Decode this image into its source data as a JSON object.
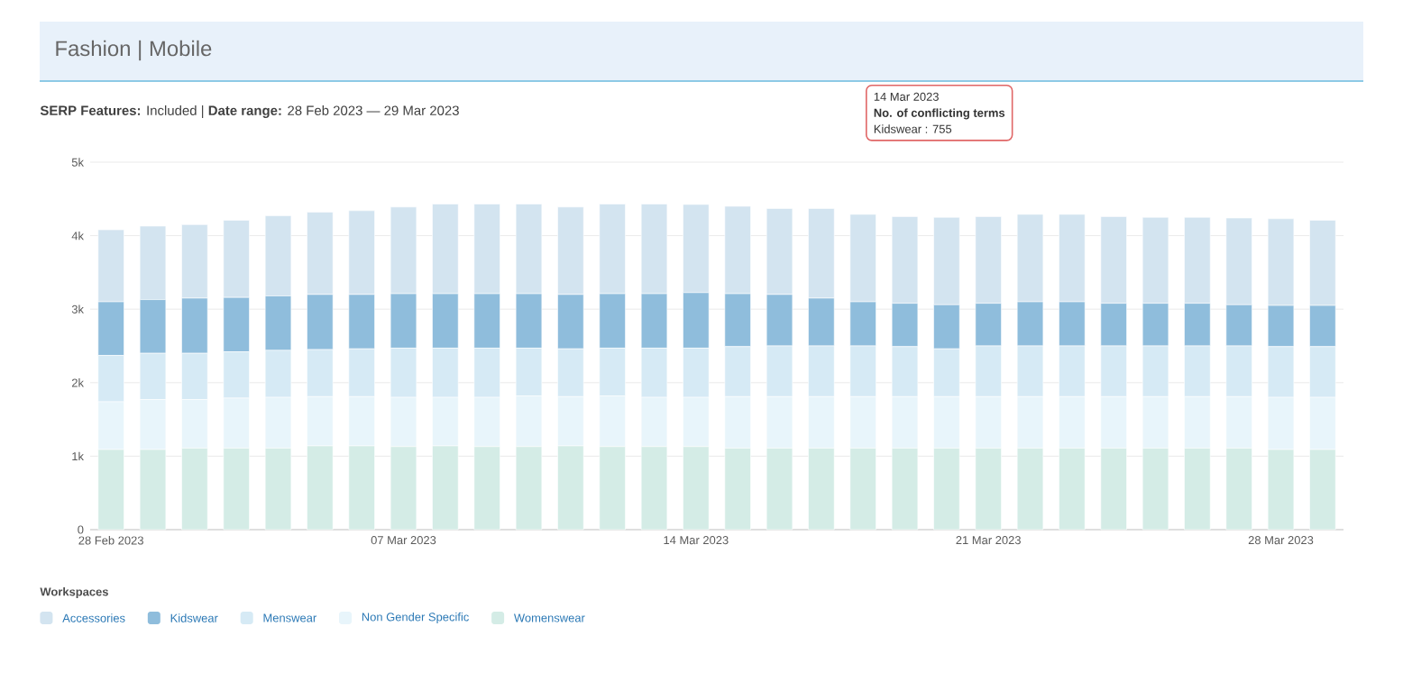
{
  "chart_data": {
    "type": "bar",
    "stacked": true,
    "title": "Fashion | Mobile",
    "subtitle": "**SERP Features:** Included  |  **Date range:** 28 Feb 2023 — 29 Mar 2023",
    "legend_title": "Workspaces",
    "legend": "bottom",
    "grid": "y",
    "categories": [
      "28 Feb 2023",
      null,
      null,
      null,
      null,
      null,
      null,
      "07 Mar 2023",
      null,
      null,
      null,
      null,
      null,
      null,
      "14 Mar 2023",
      null,
      null,
      null,
      null,
      null,
      null,
      "21 Mar 2023",
      null,
      null,
      null,
      null,
      null,
      null,
      "28 Mar 2023",
      null
    ],
    "ylim": [
      0,
      5000
    ],
    "yticks": [
      0,
      {
        "value": 1000,
        "label": "1k"
      },
      {
        "value": 2000,
        "label": "2k"
      },
      {
        "value": 3000,
        "label": "3k"
      },
      {
        "value": 4000,
        "label": "4k"
      },
      {
        "value": 5000,
        "label": "5k"
      }
    ],
    "series": [
      {
        "name": "Womenswear",
        "color": "#d4ece6",
        "values": [
          1090,
          1090,
          1110,
          1110,
          1110,
          1140,
          1140,
          1130,
          1140,
          1130,
          1130,
          1140,
          1130,
          1130,
          1130,
          1110,
          1110,
          1110,
          1110,
          1110,
          1110,
          1110,
          1110,
          1110,
          1110,
          1110,
          1110,
          1110,
          1090,
          1090
        ]
      },
      {
        "name": "Non Gender Specific",
        "color": "#e8f5fb",
        "values": [
          650,
          680,
          660,
          680,
          690,
          670,
          670,
          670,
          660,
          670,
          690,
          670,
          690,
          670,
          670,
          700,
          700,
          700,
          700,
          700,
          700,
          700,
          700,
          700,
          700,
          700,
          700,
          700,
          710,
          710
        ]
      },
      {
        "name": "Menswear",
        "color": "#d6eaf5",
        "values": [
          630,
          630,
          630,
          630,
          640,
          640,
          650,
          670,
          670,
          670,
          650,
          650,
          650,
          670,
          670,
          680,
          690,
          690,
          690,
          680,
          650,
          690,
          690,
          690,
          690,
          690,
          690,
          690,
          690,
          690
        ]
      },
      {
        "name": "Kidswear",
        "color": "#8fbddc",
        "values": [
          730,
          730,
          750,
          740,
          740,
          750,
          740,
          740,
          740,
          740,
          740,
          740,
          740,
          740,
          755,
          720,
          700,
          650,
          600,
          590,
          600,
          580,
          600,
          600,
          580,
          580,
          580,
          560,
          560,
          560
        ]
      },
      {
        "name": "Accessories",
        "color": "#d3e4f0",
        "values": [
          980,
          1000,
          1000,
          1050,
          1090,
          1120,
          1140,
          1180,
          1220,
          1220,
          1220,
          1190,
          1220,
          1220,
          1200,
          1190,
          1170,
          1220,
          1190,
          1180,
          1190,
          1180,
          1190,
          1190,
          1180,
          1170,
          1170,
          1180,
          1180,
          1160
        ]
      }
    ],
    "annotations": [
      "14 Mar 2023",
      "No. of conflicting terms",
      "Kidswear : 755"
    ]
  }
}
